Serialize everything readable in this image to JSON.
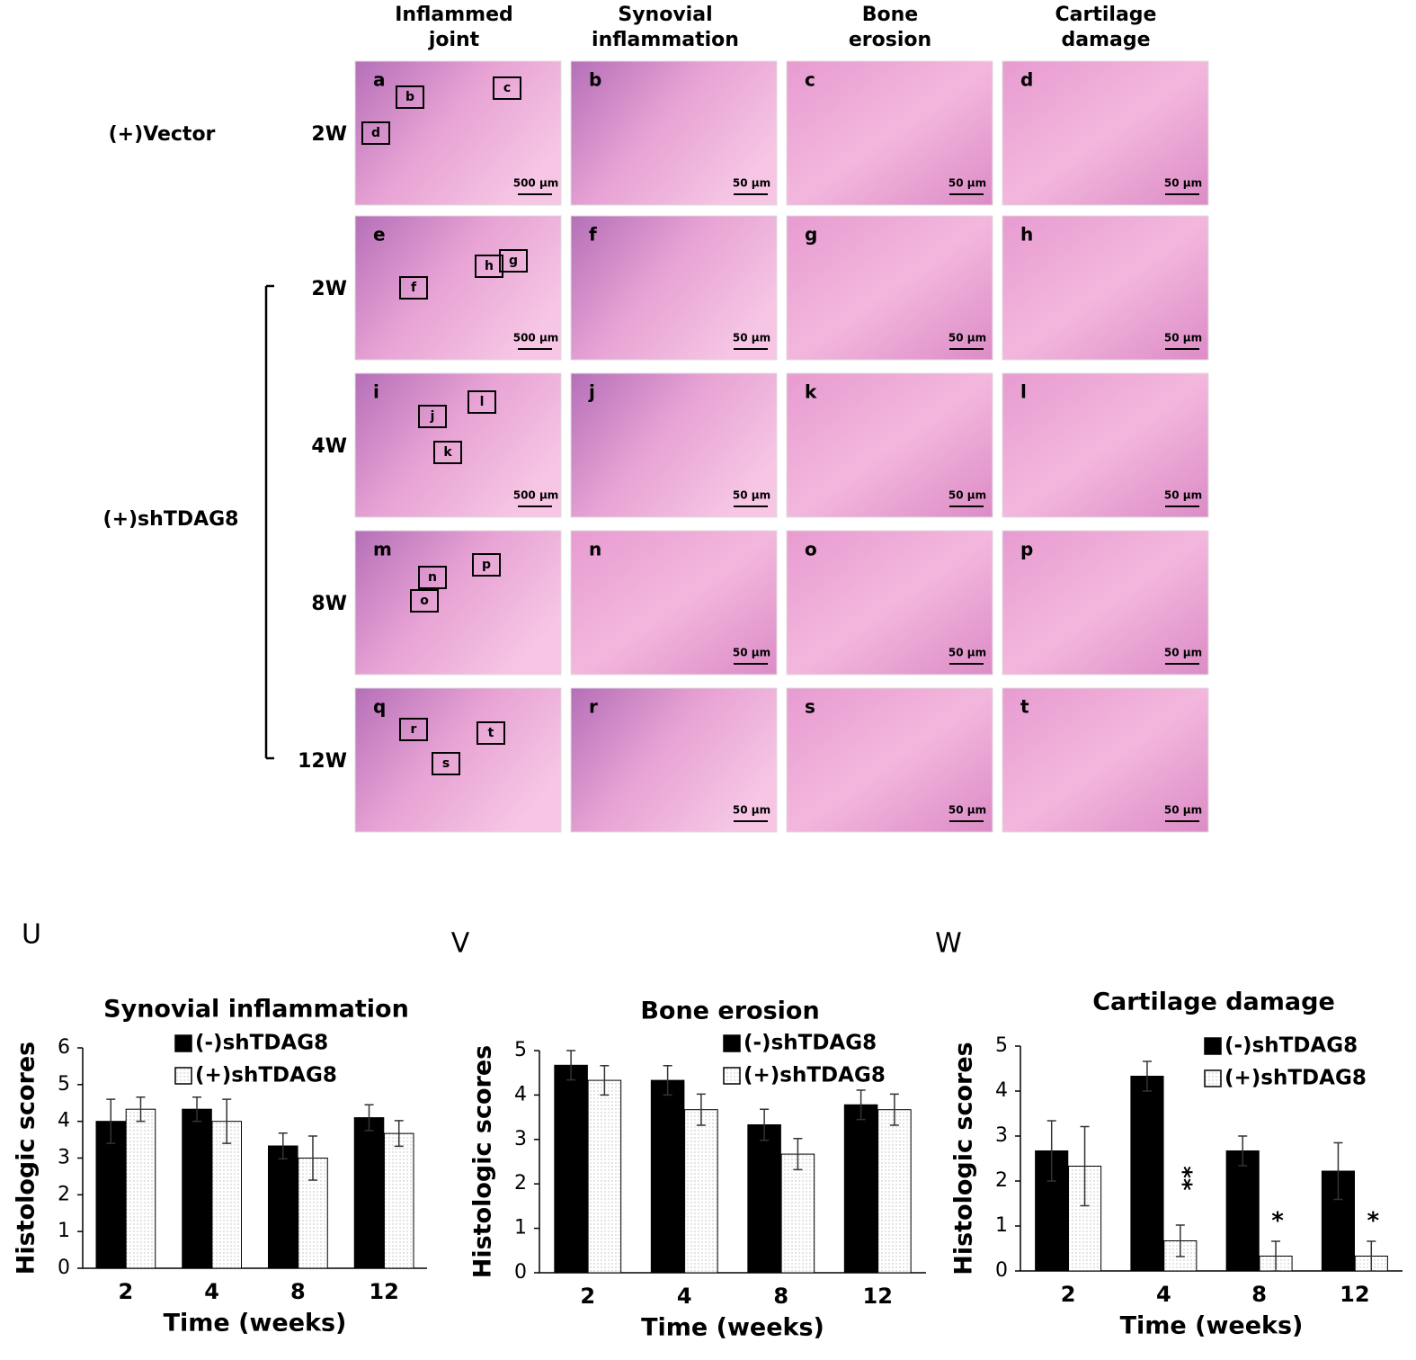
{
  "figure": {
    "columns": [
      [
        "Inflammed",
        "joint"
      ],
      [
        "Synovial",
        "inflammation"
      ],
      [
        "Bone",
        "erosion"
      ],
      [
        "Cartilage",
        "damage"
      ]
    ],
    "groups": [
      "(+)Vector",
      "(+)shTDAG8"
    ],
    "rows": [
      {
        "time": "2W",
        "letters": [
          "a",
          "b",
          "c",
          "d"
        ],
        "insets": [
          "b",
          "c",
          "d"
        ],
        "scales": [
          "500 µm",
          "50 µm",
          "50 µm",
          "50 µm"
        ]
      },
      {
        "time": "2W",
        "letters": [
          "e",
          "f",
          "g",
          "h"
        ],
        "insets": [
          "f",
          "h",
          "g"
        ],
        "scales": [
          "500 µm",
          "50 µm",
          "50 µm",
          "50 µm"
        ]
      },
      {
        "time": "4W",
        "letters": [
          "i",
          "j",
          "k",
          "l"
        ],
        "insets": [
          "j",
          "l",
          "k"
        ],
        "scales": [
          "500 µm",
          "50 µm",
          "50 µm",
          "50 µm"
        ]
      },
      {
        "time": "8W",
        "letters": [
          "m",
          "n",
          "o",
          "p"
        ],
        "insets": [
          "n",
          "p",
          "o"
        ],
        "scales": [
          null,
          "50 µm",
          "50 µm",
          "50 µm"
        ]
      },
      {
        "time": "12W",
        "letters": [
          "q",
          "r",
          "s",
          "t"
        ],
        "insets": [
          "r",
          "t",
          "s"
        ],
        "scales": [
          null,
          "50 µm",
          "50 µm",
          "50 µm"
        ]
      }
    ]
  },
  "panel_labels": [
    "U",
    "V",
    "W"
  ],
  "chart_data": [
    {
      "type": "bar",
      "title": "Synovial inflammation",
      "xlabel": "Time (weeks)",
      "ylabel": "Histologic scores",
      "categories": [
        "2",
        "4",
        "8",
        "12"
      ],
      "ylim": [
        0,
        6
      ],
      "yticks": [
        0,
        1,
        2,
        3,
        4,
        5,
        6
      ],
      "legend": "top-right",
      "series": [
        {
          "name": "(-)shTDAG8",
          "color": "#000000",
          "values": [
            4.0,
            4.33,
            3.33,
            4.1
          ],
          "errors": [
            0.6,
            0.33,
            0.35,
            0.35
          ]
        },
        {
          "name": "(+)shTDAG8",
          "color": "#f2f2f2",
          "values": [
            4.33,
            4.0,
            3.0,
            3.67
          ],
          "errors": [
            0.33,
            0.6,
            0.6,
            0.35
          ]
        }
      ]
    },
    {
      "type": "bar",
      "title": "Bone erosion",
      "xlabel": "Time (weeks)",
      "ylabel": "Histologic scores",
      "categories": [
        "2",
        "4",
        "8",
        "12"
      ],
      "ylim": [
        0,
        5
      ],
      "yticks": [
        0,
        1,
        2,
        3,
        4,
        5
      ],
      "legend": "top-right",
      "series": [
        {
          "name": "(-)shTDAG8",
          "color": "#000000",
          "values": [
            4.67,
            4.33,
            3.33,
            3.78
          ],
          "errors": [
            0.33,
            0.33,
            0.35,
            0.33
          ]
        },
        {
          "name": "(+)shTDAG8",
          "color": "#f2f2f2",
          "values": [
            4.33,
            3.67,
            2.67,
            3.67
          ],
          "errors": [
            0.33,
            0.35,
            0.35,
            0.35
          ]
        }
      ]
    },
    {
      "type": "bar",
      "title": "Cartilage damage",
      "xlabel": "Time (weeks)",
      "ylabel": "Histologic scores",
      "categories": [
        "2",
        "4",
        "8",
        "12"
      ],
      "ylim": [
        0,
        5
      ],
      "yticks": [
        0,
        1,
        2,
        3,
        4,
        5
      ],
      "legend": "top-right",
      "series": [
        {
          "name": "(-)shTDAG8",
          "color": "#000000",
          "values": [
            2.67,
            4.33,
            2.67,
            2.22
          ],
          "errors": [
            0.67,
            0.33,
            0.33,
            0.63
          ]
        },
        {
          "name": "(+)shTDAG8",
          "color": "#f2f2f2",
          "values": [
            2.33,
            0.67,
            0.33,
            0.33
          ],
          "errors": [
            0.88,
            0.35,
            0.33,
            0.33
          ],
          "significance": [
            null,
            "**",
            "*",
            "*"
          ]
        }
      ]
    }
  ]
}
